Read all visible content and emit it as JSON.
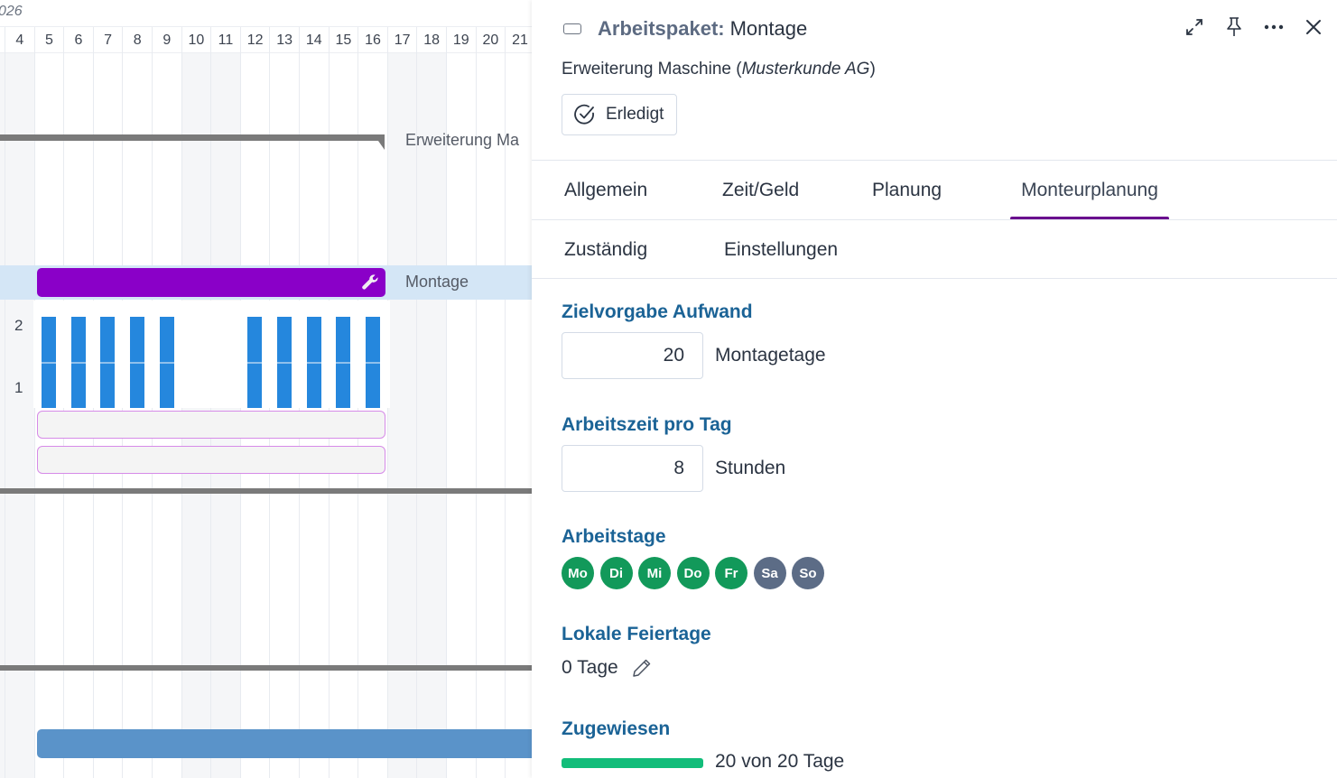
{
  "gantt": {
    "year_label": "026",
    "days": [
      "4",
      "5",
      "6",
      "7",
      "8",
      "9",
      "10",
      "11",
      "12",
      "13",
      "14",
      "15",
      "16",
      "17",
      "18",
      "19",
      "20",
      "21"
    ],
    "weekend_days": [
      "3",
      "4",
      "10",
      "11",
      "17",
      "18"
    ],
    "summary_label": "Erweiterung Ma",
    "task_label": "Montage",
    "task_color": "#8a00c8",
    "load_chart": {
      "y_ticks": [
        "2",
        "1"
      ],
      "bar_color": "#2587dd"
    }
  },
  "chart_data": {
    "type": "bar",
    "title": "",
    "categories": [
      "5",
      "6",
      "7",
      "8",
      "9",
      "10",
      "11",
      "12",
      "13",
      "14",
      "15",
      "16"
    ],
    "values": [
      2,
      2,
      2,
      2,
      2,
      0,
      0,
      2,
      2,
      2,
      2,
      2
    ],
    "xlabel": "",
    "ylabel": "",
    "ylim": [
      0,
      2
    ]
  },
  "panel": {
    "title_type": "Arbeitspaket:",
    "title_name": "Montage",
    "subtitle_main": "Erweiterung Maschine (",
    "subtitle_customer": "Musterkunde AG",
    "subtitle_end": ")",
    "status_label": "Erledigt",
    "header_icons": [
      "expand-icon",
      "pin-icon",
      "more-icon",
      "close-icon"
    ],
    "tabs_row1": [
      {
        "label": "Allgemein",
        "active": false
      },
      {
        "label": "Zeit/Geld",
        "active": false
      },
      {
        "label": "Planung",
        "active": false
      },
      {
        "label": "Monteurplanung",
        "active": true
      }
    ],
    "tabs_row2": [
      {
        "label": "Zuständig",
        "active": false
      },
      {
        "label": "Einstellungen",
        "active": false
      }
    ],
    "target_effort": {
      "label": "Zielvorgabe Aufwand",
      "value": "20",
      "unit": "Montagetage"
    },
    "hours_per_day": {
      "label": "Arbeitszeit pro Tag",
      "value": "8",
      "unit": "Stunden"
    },
    "workdays": {
      "label": "Arbeitstage",
      "days": [
        {
          "label": "Mo",
          "active": true
        },
        {
          "label": "Di",
          "active": true
        },
        {
          "label": "Mi",
          "active": true
        },
        {
          "label": "Do",
          "active": true
        },
        {
          "label": "Fr",
          "active": true
        },
        {
          "label": "Sa",
          "active": false
        },
        {
          "label": "So",
          "active": false
        }
      ]
    },
    "holidays": {
      "label": "Lokale Feiertage",
      "value": "0 Tage"
    },
    "assigned": {
      "label": "Zugewiesen",
      "text": "20 von 20 Tage",
      "percent": 100,
      "color": "#12bd7a"
    },
    "accent_color": "#1b6396",
    "tab_indicator_color": "#6a0f8e"
  }
}
